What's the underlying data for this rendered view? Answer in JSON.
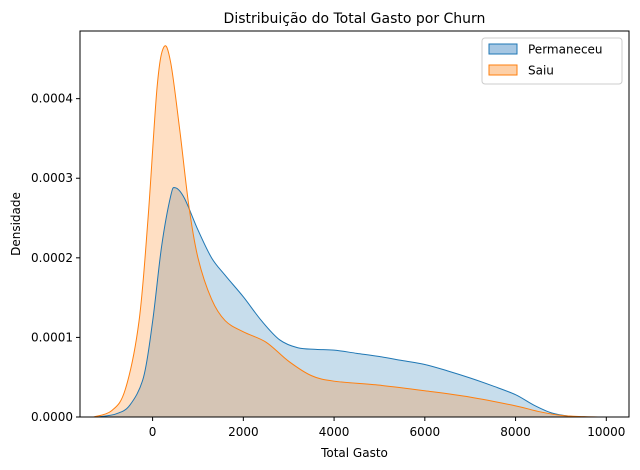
{
  "chart_data": {
    "type": "area",
    "title": "Distribuição do Total Gasto por Churn",
    "xlabel": "Total Gasto",
    "ylabel": "Densidade",
    "xlim": [
      -1600,
      10500
    ],
    "ylim": [
      0,
      0.000485
    ],
    "xticks": [
      0,
      2000,
      4000,
      6000,
      8000,
      10000
    ],
    "xtick_labels": [
      "0",
      "2000",
      "4000",
      "6000",
      "8000",
      "10000"
    ],
    "yticks": [
      0,
      0.0001,
      0.0002,
      0.0003,
      0.0004
    ],
    "ytick_labels": [
      "0.0000",
      "0.0001",
      "0.0002",
      "0.0003",
      "0.0004"
    ],
    "grid": false,
    "legend_position": "top-right",
    "series": [
      {
        "name": "Permaneceu",
        "color": "#1f77b4",
        "fill": "#a6c7e3",
        "x": [
          -1200,
          -800,
          -500,
          -200,
          0,
          200,
          400,
          500,
          700,
          1000,
          1300,
          1600,
          2000,
          2400,
          2800,
          3200,
          3600,
          4000,
          4500,
          5000,
          5500,
          6000,
          6500,
          7000,
          7500,
          8000,
          8400,
          8800,
          9200,
          9600
        ],
        "y": [
          0,
          4e-06,
          1.5e-05,
          5e-05,
          0.00012,
          0.000215,
          0.000278,
          0.000288,
          0.000275,
          0.000235,
          0.0002,
          0.000178,
          0.000151,
          0.000121,
          9.7e-05,
          8.7e-05,
          8.5e-05,
          8.4e-05,
          8e-05,
          7.6e-05,
          7.1e-05,
          6.6e-05,
          5.8e-05,
          4.9e-05,
          3.9e-05,
          2.8e-05,
          1.5e-05,
          5e-06,
          1e-06,
          0
        ]
      },
      {
        "name": "Saiu",
        "color": "#ff7f0e",
        "fill": "#fdd0a8",
        "x": [
          -1300,
          -900,
          -600,
          -300,
          -100,
          100,
          250,
          400,
          600,
          800,
          1000,
          1300,
          1600,
          2000,
          2500,
          3000,
          3500,
          4000,
          5000,
          6000,
          7000,
          8000,
          8500,
          9000,
          9500,
          9900
        ],
        "y": [
          0,
          8e-06,
          3.5e-05,
          0.00012,
          0.00025,
          0.000415,
          0.000465,
          0.000445,
          0.00036,
          0.000265,
          0.0002,
          0.000148,
          0.000121,
          0.000107,
          9.4e-05,
          7e-05,
          5.2e-05,
          4.5e-05,
          4e-05,
          3.3e-05,
          2.5e-05,
          1.4e-05,
          7e-06,
          2e-06,
          5e-07,
          0
        ]
      }
    ]
  }
}
